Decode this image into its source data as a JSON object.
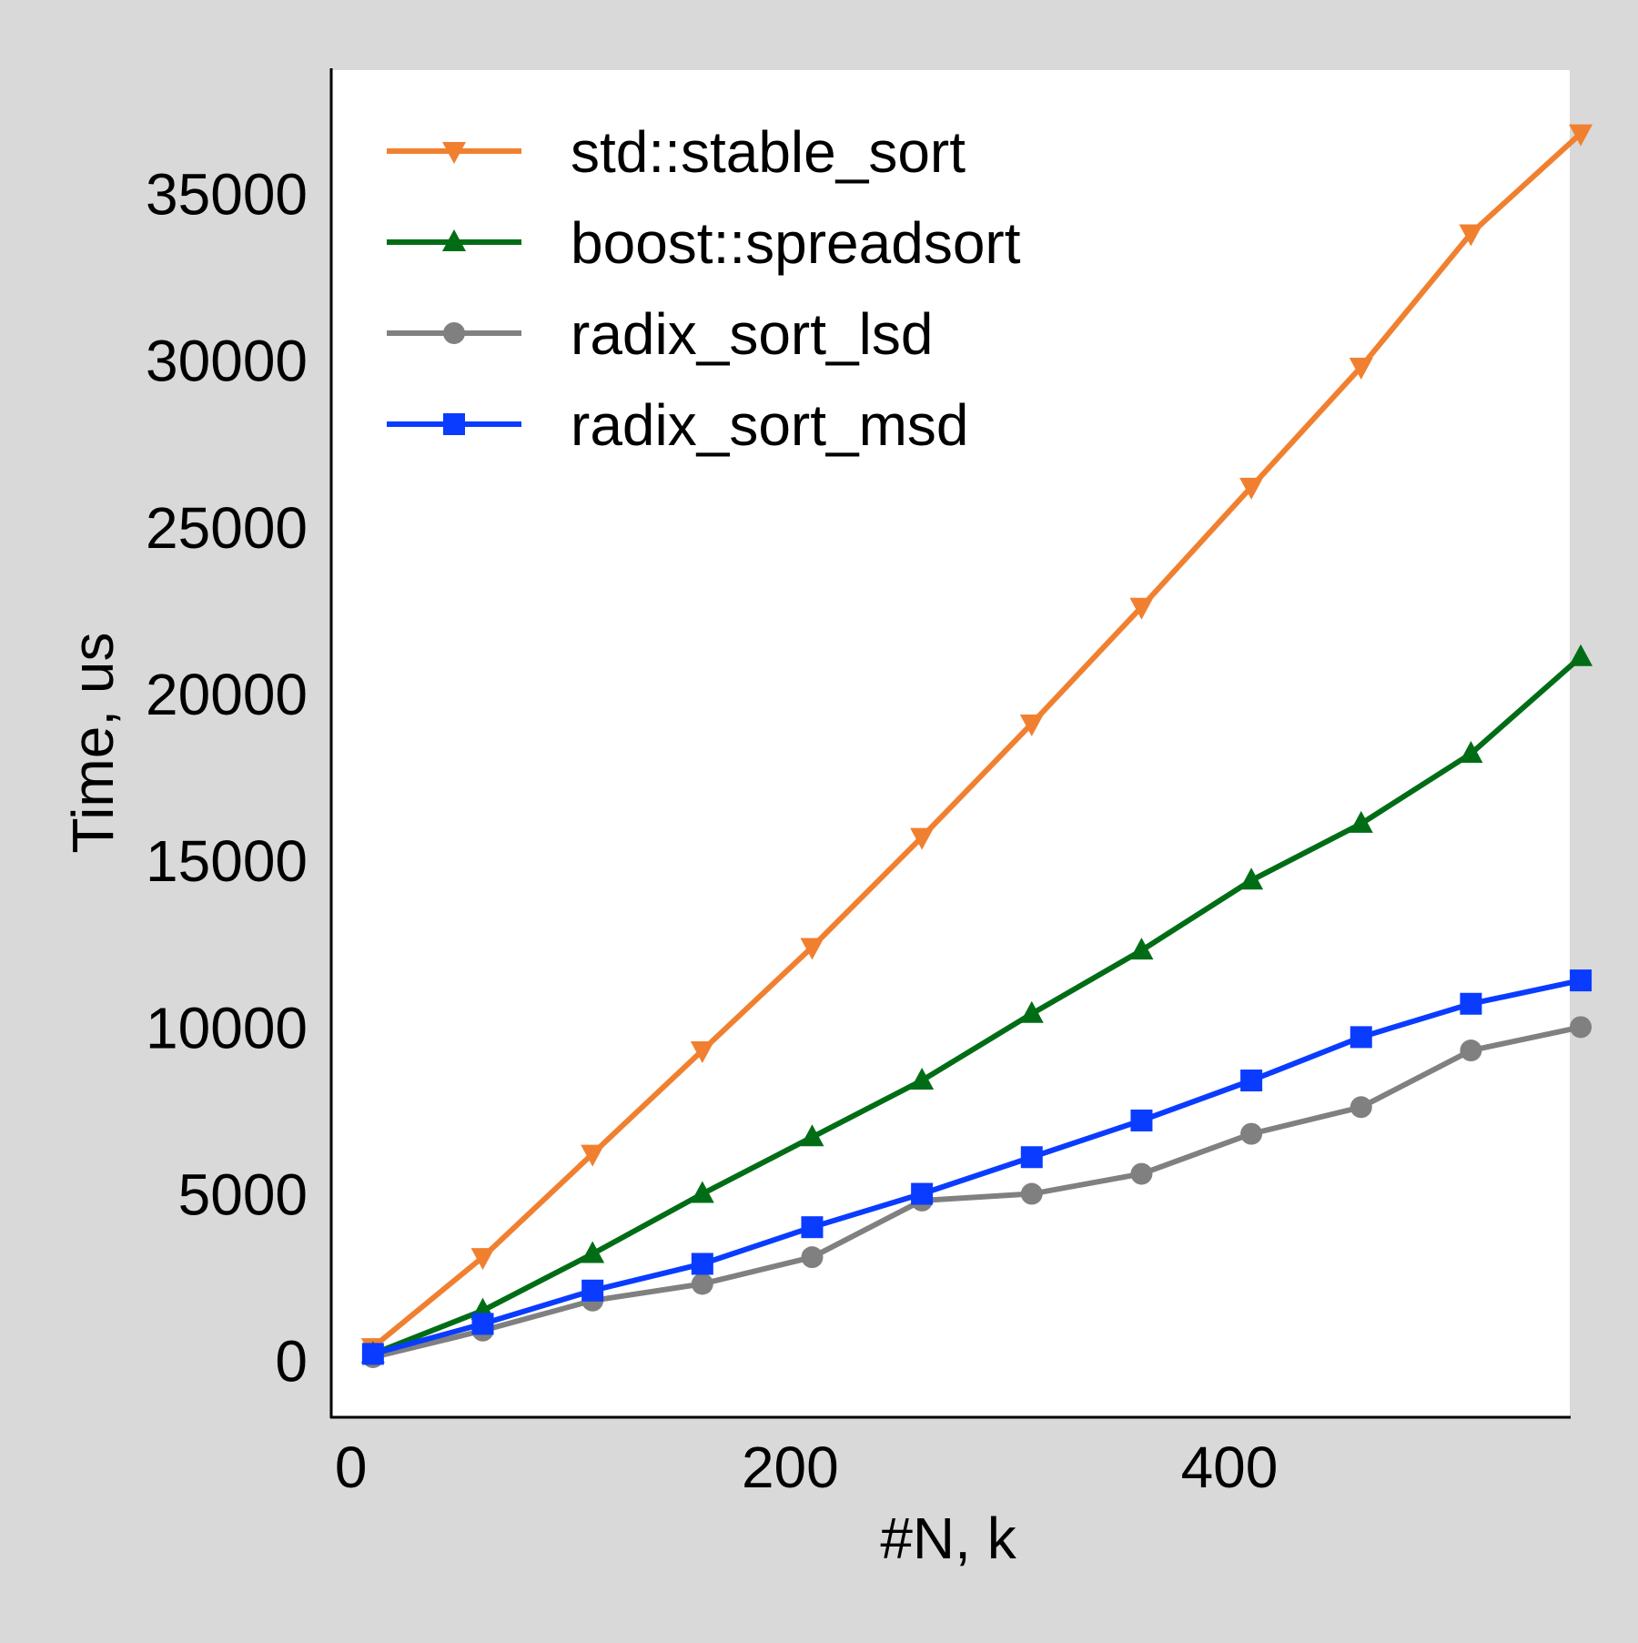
{
  "chart_data": {
    "type": "line",
    "title": "",
    "xlabel": "#N, k",
    "ylabel": "Time, us",
    "xlim": [
      -9,
      555
    ],
    "ylim": [
      -1700,
      38700
    ],
    "xticks": [
      0,
      200,
      400
    ],
    "yticks": [
      0,
      5000,
      10000,
      15000,
      20000,
      25000,
      30000,
      35000
    ],
    "grid": false,
    "legend_position": "upper-left",
    "background": "#d9d9d9",
    "plot_background": "#ffffff",
    "x": [
      10,
      60,
      110,
      160,
      210,
      260,
      310,
      360,
      410,
      460,
      510,
      560
    ],
    "series": [
      {
        "name": "std::stable_sort",
        "color": "#f08030",
        "marker": "triangle-down",
        "values": [
          400,
          3100,
          6200,
          9300,
          12400,
          15700,
          19100,
          22600,
          26200,
          29800,
          33800,
          36800
        ]
      },
      {
        "name": "boost::spreadsort",
        "color": "#006d16",
        "marker": "triangle-up",
        "values": [
          200,
          1500,
          3200,
          5000,
          6700,
          8400,
          10400,
          12300,
          14400,
          16100,
          18200,
          21100
        ]
      },
      {
        "name": "radix_sort_lsd",
        "color": "#808080",
        "marker": "circle",
        "values": [
          100,
          900,
          1800,
          2300,
          3100,
          4800,
          5000,
          5600,
          6800,
          7600,
          9300,
          10000
        ]
      },
      {
        "name": "radix_sort_msd",
        "color": "#0a3cff",
        "marker": "square",
        "values": [
          200,
          1100,
          2100,
          2900,
          4000,
          5000,
          6100,
          7200,
          8400,
          9700,
          10700,
          11400
        ]
      }
    ]
  }
}
